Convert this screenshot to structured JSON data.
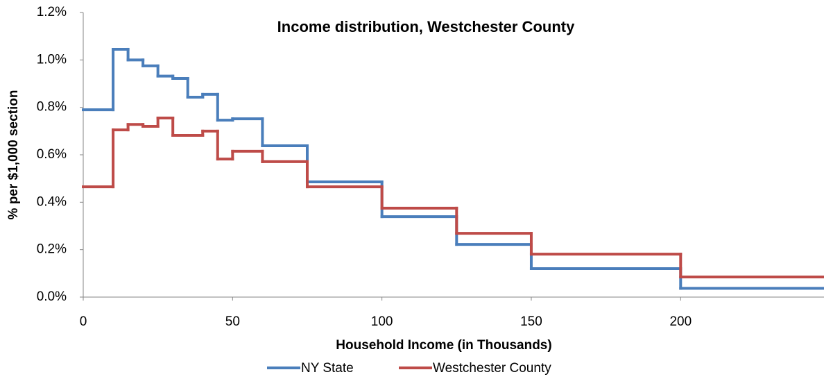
{
  "chart_data": {
    "type": "step",
    "title": "Income distribution, Westchester County",
    "xlabel": "Household Income (in Thousands)",
    "ylabel": "% per $1,000 section",
    "x": [
      0,
      10,
      15,
      20,
      25,
      30,
      35,
      40,
      45,
      50,
      60,
      75,
      100,
      125,
      150,
      200
    ],
    "series": [
      {
        "name": "NY State",
        "color": "#4a7ebb",
        "values": [
          0.79,
          1.045,
          1.0,
          0.975,
          0.932,
          0.922,
          0.843,
          0.855,
          0.746,
          0.752,
          0.638,
          0.486,
          0.339,
          0.222,
          0.12,
          0.037
        ]
      },
      {
        "name": "Westchester County",
        "color": "#be4b48",
        "values": [
          0.465,
          0.705,
          0.728,
          0.72,
          0.755,
          0.682,
          0.682,
          0.7,
          0.582,
          0.615,
          0.571,
          0.465,
          0.375,
          0.269,
          0.181,
          0.085
        ]
      }
    ],
    "xlim": [
      0,
      248
    ],
    "xticks": [
      0,
      50,
      100,
      150,
      200
    ],
    "ylim": [
      0,
      1.2
    ],
    "yticks": [
      {
        "value": 0,
        "label": "0.0%"
      },
      {
        "value": 0.2,
        "label": "0.2%"
      },
      {
        "value": 0.4,
        "label": "0.4%"
      },
      {
        "value": 0.6,
        "label": "0.6%"
      },
      {
        "value": 0.8,
        "label": "0.8%"
      },
      {
        "value": 1.0,
        "label": "1.0%"
      },
      {
        "value": 1.2,
        "label": "1.2%"
      }
    ],
    "grid": false,
    "legend": "bottom"
  }
}
